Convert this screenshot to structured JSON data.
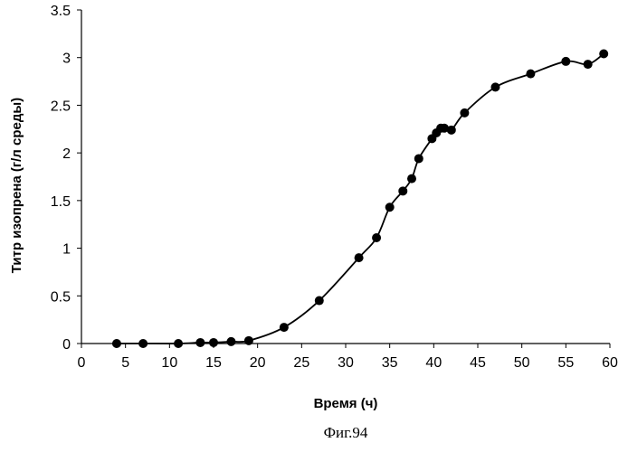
{
  "chart_data": {
    "type": "scatter",
    "xlabel": "Время (ч)",
    "ylabel": "Титр изопрена (г/л среды)",
    "xlim": [
      0,
      60
    ],
    "ylim": [
      0,
      3.5
    ],
    "x_ticks": [
      "0",
      "5",
      "10",
      "15",
      "20",
      "25",
      "30",
      "35",
      "40",
      "45",
      "50",
      "55",
      "60"
    ],
    "y_ticks": [
      "0",
      "0.5",
      "1",
      "1.5",
      "2",
      "2.5",
      "3",
      "3.5"
    ],
    "grid": false,
    "legend": "none",
    "marker_color": "#000000",
    "line_color": "#000000",
    "series": [
      {
        "x": [
          4,
          7,
          11,
          13.5,
          15,
          17,
          19,
          23,
          27,
          31.5,
          33.5,
          35,
          36.5,
          37.5,
          38.3,
          39.8,
          40.3,
          40.8,
          41.2,
          42,
          43.5,
          47,
          51,
          55,
          57.5,
          59.3
        ],
        "y": [
          0,
          0,
          0,
          0.01,
          0.01,
          0.02,
          0.03,
          0.17,
          0.45,
          0.9,
          1.11,
          1.43,
          1.6,
          1.73,
          1.94,
          2.15,
          2.21,
          2.26,
          2.26,
          2.24,
          2.42,
          2.69,
          2.83,
          2.96,
          2.93,
          3.04
        ]
      }
    ]
  },
  "caption": "Фиг.94"
}
